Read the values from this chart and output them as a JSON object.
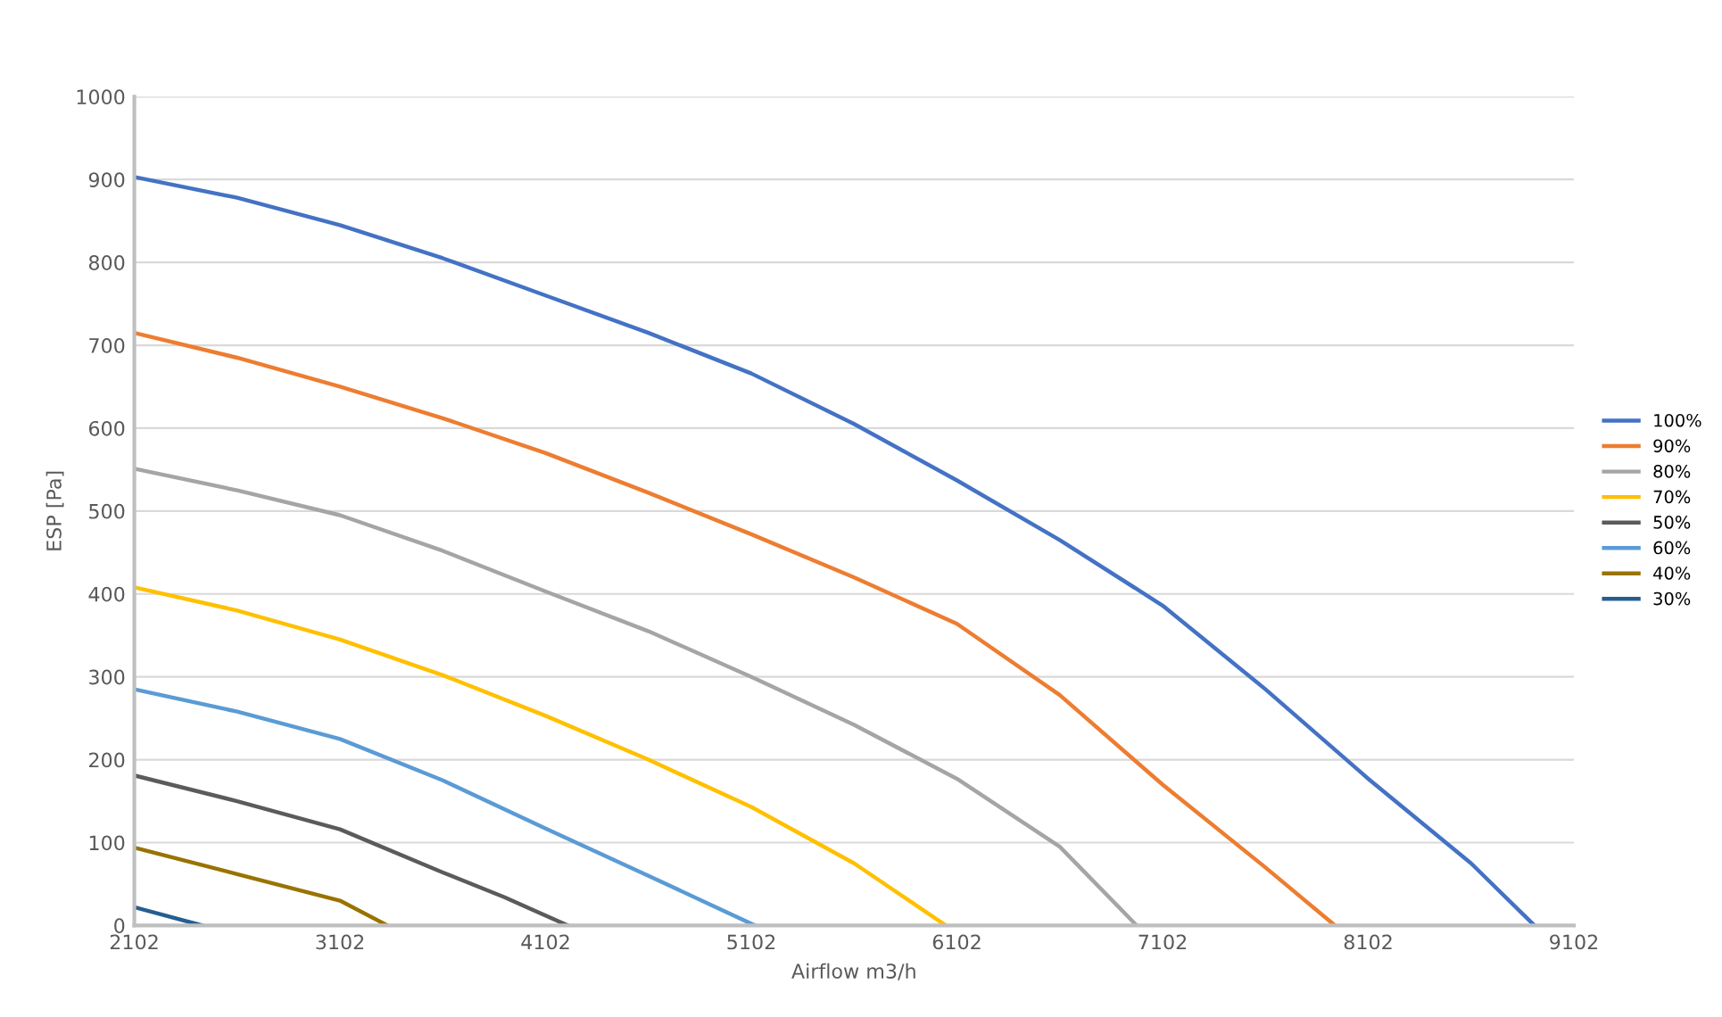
{
  "chart_data": {
    "type": "line",
    "xlabel": "Airflow m3/h",
    "ylabel": "ESP [Pa]",
    "xlim": [
      2102,
      9102
    ],
    "xticks": [
      2102,
      3102,
      4102,
      5102,
      6102,
      7102,
      8102,
      9102
    ],
    "ylim": [
      0,
      1000
    ],
    "yticks": [
      0,
      100,
      200,
      300,
      400,
      500,
      600,
      700,
      800,
      900,
      1000
    ],
    "grid": "y",
    "legend": "right",
    "marker": "none",
    "line_style": "solid",
    "series": [
      {
        "name": "100%",
        "color": "#4472c4",
        "x": [
          2102,
          2602,
          3102,
          3602,
          4102,
          4602,
          5102,
          5602,
          6102,
          6602,
          7102,
          7602,
          8102,
          8602,
          8910
        ],
        "values": [
          903,
          878,
          845,
          805,
          760,
          715,
          666,
          605,
          537,
          465,
          386,
          285,
          177,
          75,
          0
        ]
      },
      {
        "name": "90%",
        "color": "#ed7d31",
        "x": [
          2102,
          2602,
          3102,
          3602,
          4102,
          4602,
          5102,
          5602,
          6102,
          6602,
          7102,
          7602,
          7940
        ],
        "values": [
          715,
          685,
          650,
          612,
          570,
          522,
          472,
          420,
          364,
          278,
          170,
          70,
          0
        ]
      },
      {
        "name": "80%",
        "color": "#a5a5a5",
        "x": [
          2102,
          2602,
          3102,
          3602,
          4102,
          4602,
          5102,
          5602,
          6102,
          6602,
          6976
        ],
        "values": [
          551,
          525,
          495,
          452,
          403,
          355,
          300,
          242,
          177,
          95,
          0
        ]
      },
      {
        "name": "70%",
        "color": "#ffc000",
        "x": [
          2102,
          2602,
          3102,
          3602,
          4102,
          4602,
          5102,
          5602,
          6048
        ],
        "values": [
          408,
          380,
          345,
          302,
          253,
          200,
          143,
          75,
          0
        ]
      },
      {
        "name": "50%",
        "color": "#5b5b5b",
        "x": [
          2102,
          2602,
          3102,
          3602,
          3902,
          4210
        ],
        "values": [
          181,
          150,
          116,
          64,
          34,
          0
        ]
      },
      {
        "name": "60%",
        "color": "#5b9bd5",
        "x": [
          2102,
          2602,
          3102,
          3602,
          4102,
          4602,
          5120
        ],
        "values": [
          285,
          258,
          225,
          175,
          117,
          60,
          0
        ]
      },
      {
        "name": "40%",
        "color": "#997300",
        "x": [
          2102,
          2602,
          3102,
          3333
        ],
        "values": [
          94,
          62,
          30,
          0
        ]
      },
      {
        "name": "30%",
        "color": "#255e91",
        "x": [
          2102,
          2432
        ],
        "values": [
          22,
          0
        ]
      }
    ]
  }
}
